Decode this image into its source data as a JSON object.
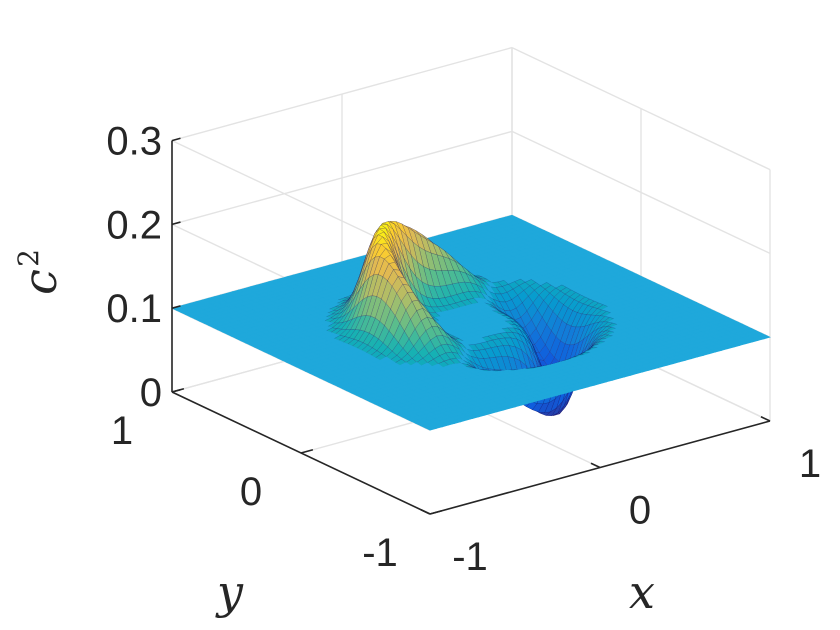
{
  "chart_data": {
    "type": "surface3d",
    "title": "",
    "xlabel": "x",
    "ylabel": "y",
    "zlabel": "c",
    "zlabel_superscript": "2",
    "xlim": [
      -1,
      1
    ],
    "ylim": [
      -1,
      1
    ],
    "zlim": [
      0,
      0.3
    ],
    "x_ticks": [
      "-1",
      "0",
      "1"
    ],
    "y_ticks": [
      "-1",
      "0",
      "1"
    ],
    "z_ticks": [
      "0",
      "0.1",
      "0.2",
      "0.3"
    ],
    "grid": true,
    "colormap": "parula",
    "colors": {
      "flat_plane": "#1fa8db",
      "peak": "#f7e03a",
      "trough": "#3f23d8",
      "grid": "#e3e3e3",
      "axis": "#262626"
    },
    "surface": {
      "baseline": 0.1,
      "ring_peak": 0.21,
      "ring_trough": 0.0,
      "ring_center": [
        0.0,
        0.0
      ],
      "ring_radius": 0.42,
      "ring_width": 0.12,
      "peak_direction": "upper-left (-x, +y)",
      "trough_direction": "lower-right (+x, -y)"
    }
  }
}
